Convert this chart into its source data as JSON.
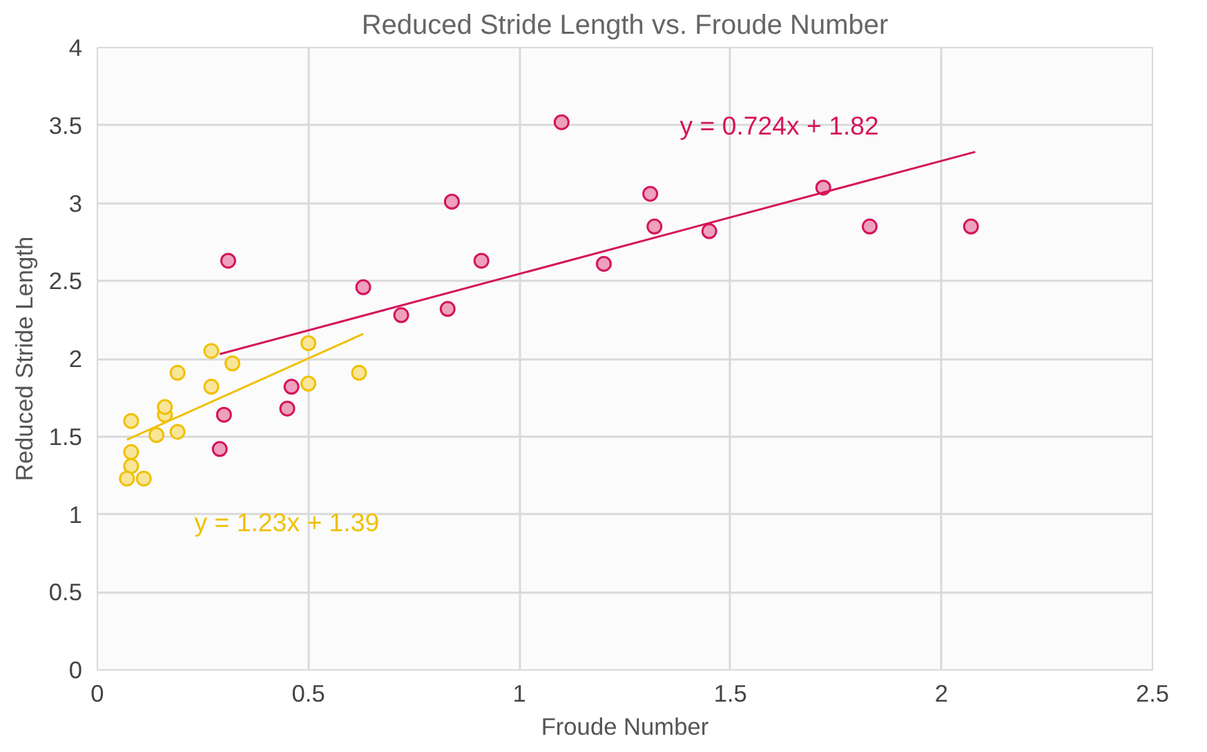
{
  "chart_data": {
    "type": "scatter",
    "title": "Reduced Stride Length vs. Froude Number",
    "xlabel": "Froude Number",
    "ylabel": "Reduced Stride Length",
    "xlim": [
      0,
      2.5
    ],
    "ylim": [
      0,
      4
    ],
    "xticks": [
      0,
      0.5,
      1,
      1.5,
      2,
      2.5
    ],
    "yticks": [
      0,
      0.5,
      1,
      1.5,
      2,
      2.5,
      3,
      3.5,
      4
    ],
    "grid": true,
    "series": [
      {
        "color": "#d4145a",
        "marker": "circle",
        "x": [
          0.31,
          0.29,
          0.3,
          0.63,
          0.72,
          0.83,
          0.84,
          0.91,
          0.46,
          0.45,
          1.1,
          1.2,
          1.31,
          1.32,
          1.45,
          1.72,
          1.83,
          2.07
        ],
        "values": [
          2.63,
          1.42,
          1.64,
          2.46,
          2.28,
          2.32,
          3.01,
          2.63,
          1.82,
          1.68,
          3.52,
          2.61,
          3.06,
          2.85,
          2.82,
          3.1,
          2.85,
          2.85
        ]
      },
      {
        "color": "#f0c000",
        "marker": "circle",
        "x": [
          0.08,
          0.08,
          0.08,
          0.07,
          0.11,
          0.14,
          0.16,
          0.16,
          0.19,
          0.19,
          0.27,
          0.27,
          0.32,
          0.5,
          0.5,
          0.62
        ],
        "values": [
          1.6,
          1.4,
          1.31,
          1.23,
          1.23,
          1.51,
          1.64,
          1.69,
          1.53,
          1.91,
          2.05,
          1.82,
          1.97,
          2.1,
          1.84,
          1.91
        ]
      },
      {
        "type": "line",
        "color": "#d4145a",
        "x": [
          0.29,
          2.08
        ],
        "values": [
          2.03,
          3.33
        ]
      },
      {
        "type": "line",
        "color": "#f0c000",
        "x": [
          0.07,
          0.63
        ],
        "values": [
          1.48,
          2.16
        ]
      }
    ],
    "annotations": [
      "y = 0.724x + 1.82",
      "y = 1.23x + 1.39"
    ]
  }
}
